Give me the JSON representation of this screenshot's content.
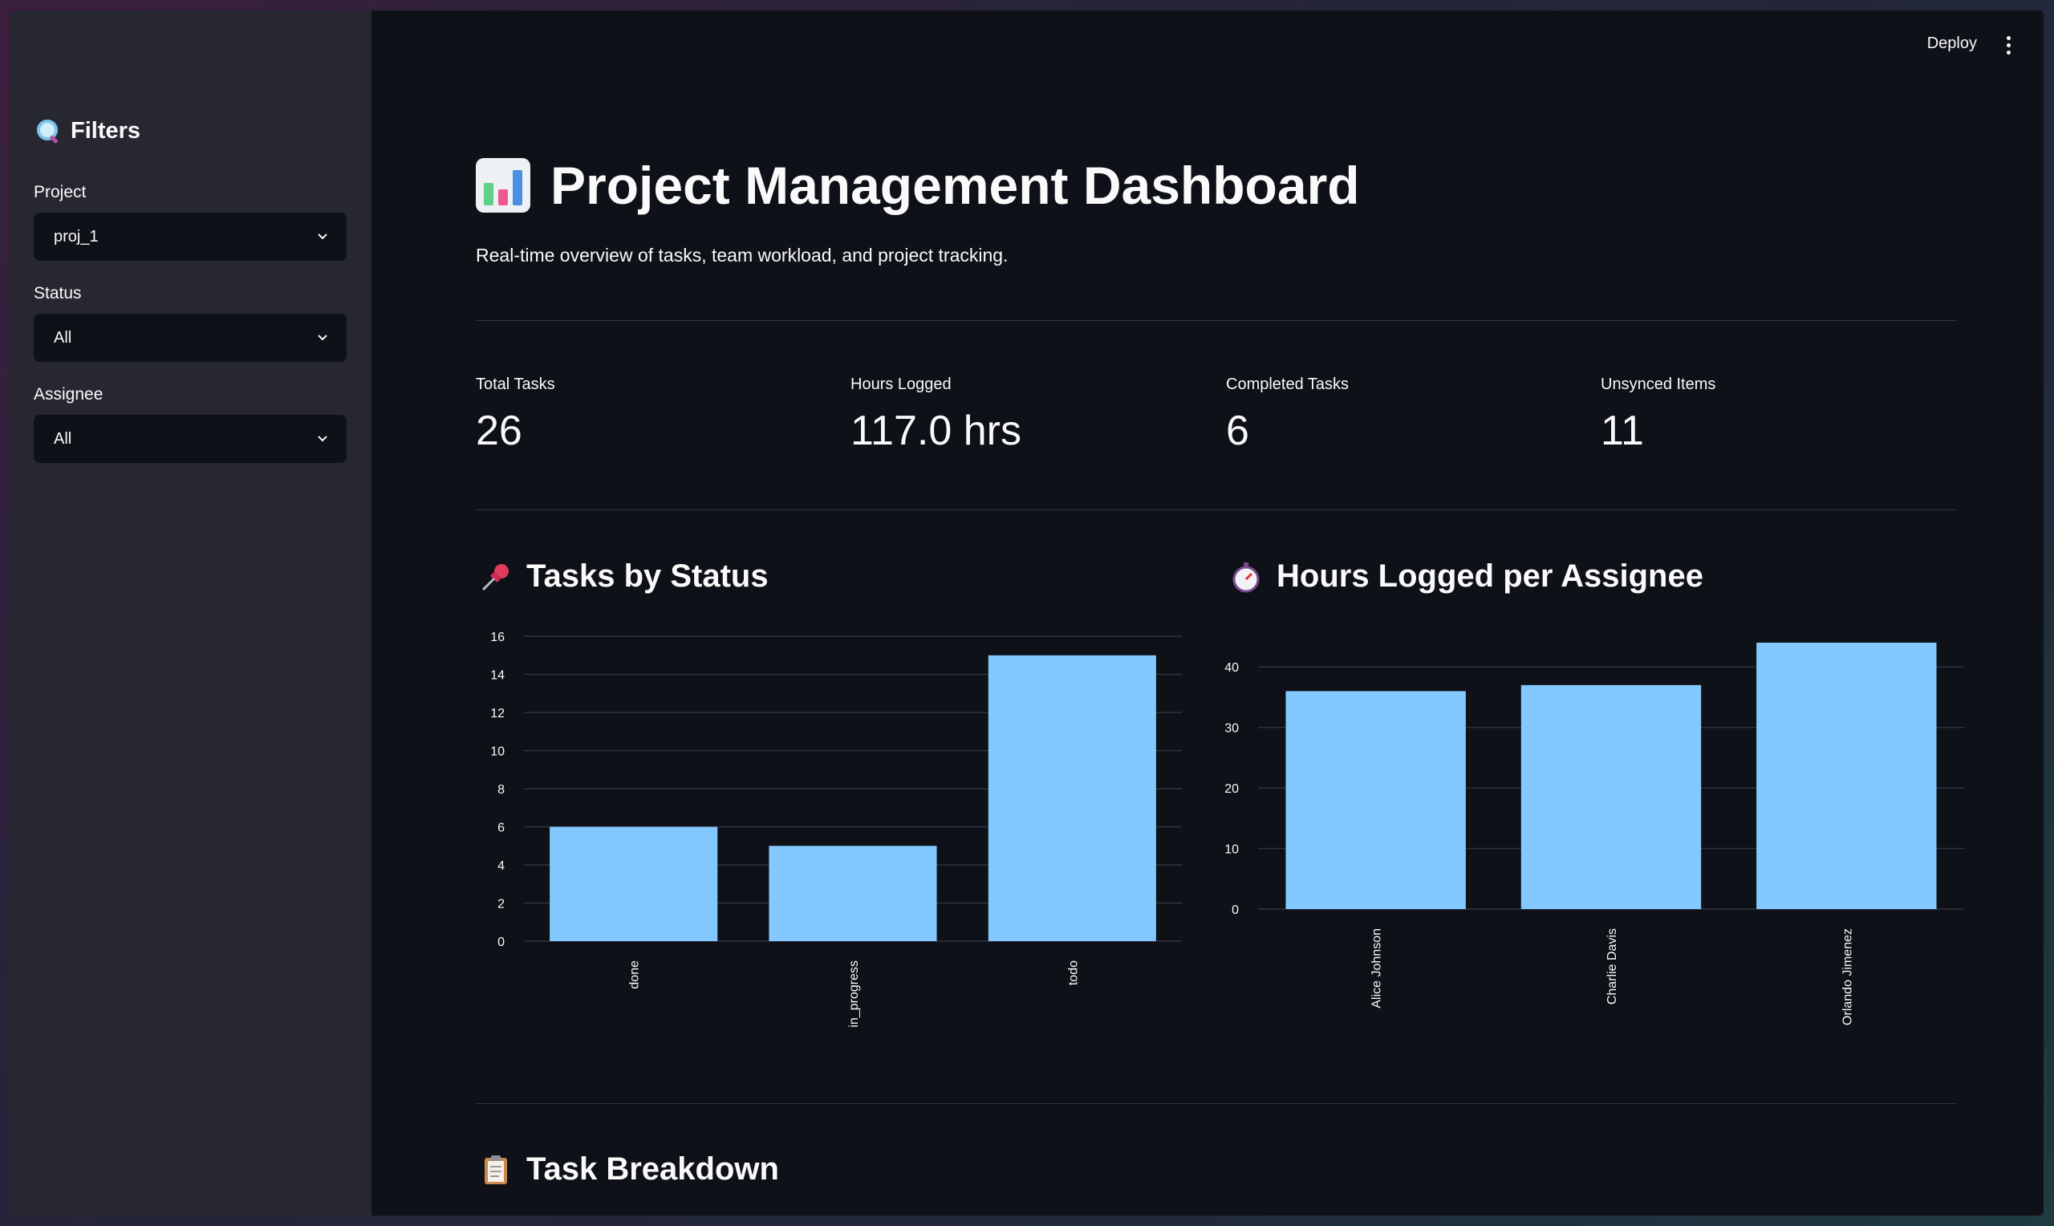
{
  "sidebar": {
    "heading": "Filters",
    "filters": [
      {
        "label": "Project",
        "value": "proj_1"
      },
      {
        "label": "Status",
        "value": "All"
      },
      {
        "label": "Assignee",
        "value": "All"
      }
    ]
  },
  "header": {
    "deploy_label": "Deploy"
  },
  "main": {
    "title": "Project Management Dashboard",
    "subtitle": "Real-time overview of tasks, team workload, and project tracking.",
    "metrics": [
      {
        "label": "Total Tasks",
        "value": "26"
      },
      {
        "label": "Hours Logged",
        "value": "117.0 hrs"
      },
      {
        "label": "Completed Tasks",
        "value": "6"
      },
      {
        "label": "Unsynced Items",
        "value": "11"
      }
    ],
    "sections": {
      "status": "Tasks by Status",
      "hours": "Hours Logged per Assignee",
      "breakdown": "Task Breakdown"
    }
  },
  "colors": {
    "bar": "#83c9ff",
    "background": "#0e1117",
    "sidebar": "#262730"
  },
  "icons": [
    "magnifier-icon",
    "bar-chart-icon",
    "pushpin-icon",
    "stopwatch-icon",
    "clipboard-icon",
    "chevron-down-icon",
    "kebab-menu-icon"
  ],
  "chart_data": [
    {
      "type": "bar",
      "categories": [
        "done",
        "in_progress",
        "todo"
      ],
      "values": [
        6,
        5,
        15
      ],
      "ylim": [
        0,
        16
      ],
      "yticks": [
        0,
        2,
        4,
        6,
        8,
        10,
        12,
        14,
        16
      ],
      "grid": true
    },
    {
      "type": "bar",
      "categories": [
        "Alice Johnson",
        "Charlie Davis",
        "Orlando Jimenez"
      ],
      "values": [
        36,
        37,
        44
      ],
      "ylim": [
        0,
        44
      ],
      "yticks": [
        0,
        10,
        20,
        30,
        40
      ],
      "grid": true
    }
  ]
}
